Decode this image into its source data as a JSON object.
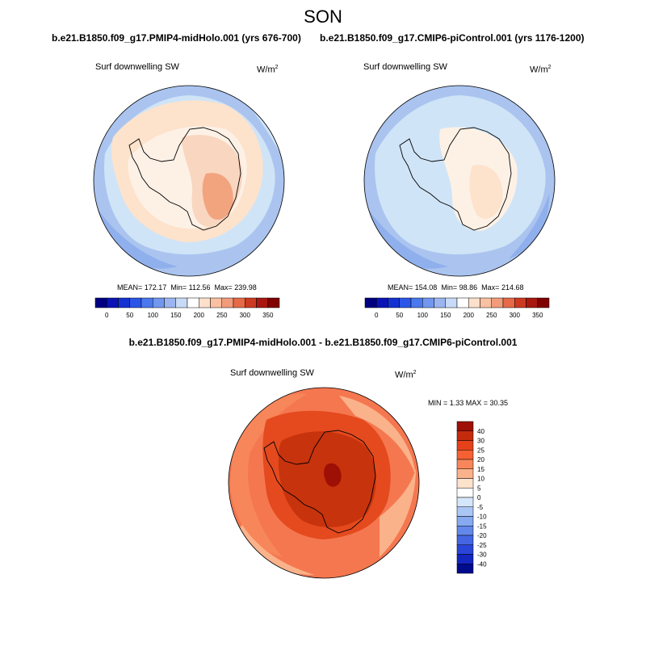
{
  "figure": {
    "season": "SON",
    "panels": [
      {
        "id": "midholo",
        "case_title": "b.e21.B1850.f09_g17.PMIP4-midHolo.001 (yrs 676-700)",
        "variable": "Surf downwelling SW",
        "units_base": "W/m",
        "units_exp": "2",
        "mean_label": "MEAN=",
        "mean": "172.17",
        "min_label": "Min=",
        "min": "112.56",
        "max_label": "Max=",
        "max": "239.98"
      },
      {
        "id": "picontrol",
        "case_title": "b.e21.B1850.f09_g17.CMIP6-piControl.001 (yrs 1176-1200)",
        "variable": "Surf downwelling SW",
        "units_base": "W/m",
        "units_exp": "2",
        "mean_label": "MEAN=",
        "mean": "154.08",
        "min_label": "Min=",
        "min": "98.86",
        "max_label": "Max=",
        "max": "214.68"
      }
    ],
    "abs_colorbar": {
      "colors": [
        "#000080",
        "#0a14b4",
        "#1432d2",
        "#2a55e8",
        "#4a78ee",
        "#7197ee",
        "#9cb5f0",
        "#c8daf5",
        "#ffffff",
        "#fde0cc",
        "#f9c1a1",
        "#f29b7a",
        "#e66a48",
        "#cc3a22",
        "#a81810",
        "#800000"
      ],
      "tick_labels": [
        "0",
        "50",
        "100",
        "150",
        "200",
        "250",
        "300",
        "350"
      ]
    },
    "diff": {
      "title": "b.e21.B1850.f09_g17.PMIP4-midHolo.001 - b.e21.B1850.f09_g17.CMIP6-piControl.001",
      "variable": "Surf downwelling SW",
      "units": "W/m",
      "units_exp": "2",
      "stats": "MIN =   1.33 MAX =  30.35",
      "colorbar_colors_top_to_bottom": [
        "#9e0f05",
        "#c42b0d",
        "#e5411b",
        "#f56133",
        "#f7865a",
        "#fab28a",
        "#fde2cc",
        "#ffffff",
        "#d4e6fa",
        "#aac6f5",
        "#87a9f0",
        "#6487ea",
        "#4566e3",
        "#2a45d8",
        "#1426c0",
        "#000a8c"
      ],
      "tick_labels": [
        "40",
        "30",
        "25",
        "20",
        "15",
        "10",
        "5",
        "0",
        "-5",
        "-10",
        "-15",
        "-20",
        "-25",
        "-30",
        "-40"
      ]
    },
    "colors": {
      "ocean_light_blue": "#cfe4f7",
      "ocean_mid_blue": "#aac4ef",
      "ocean_blue": "#8fb0ec",
      "land_cream": "#fdf1e6",
      "land_peach": "#f9d6bf",
      "land_orange": "#f2a47f",
      "diff_red": "#e44a1e",
      "diff_dark": "#c7330d",
      "diff_orange": "#f57750"
    }
  }
}
